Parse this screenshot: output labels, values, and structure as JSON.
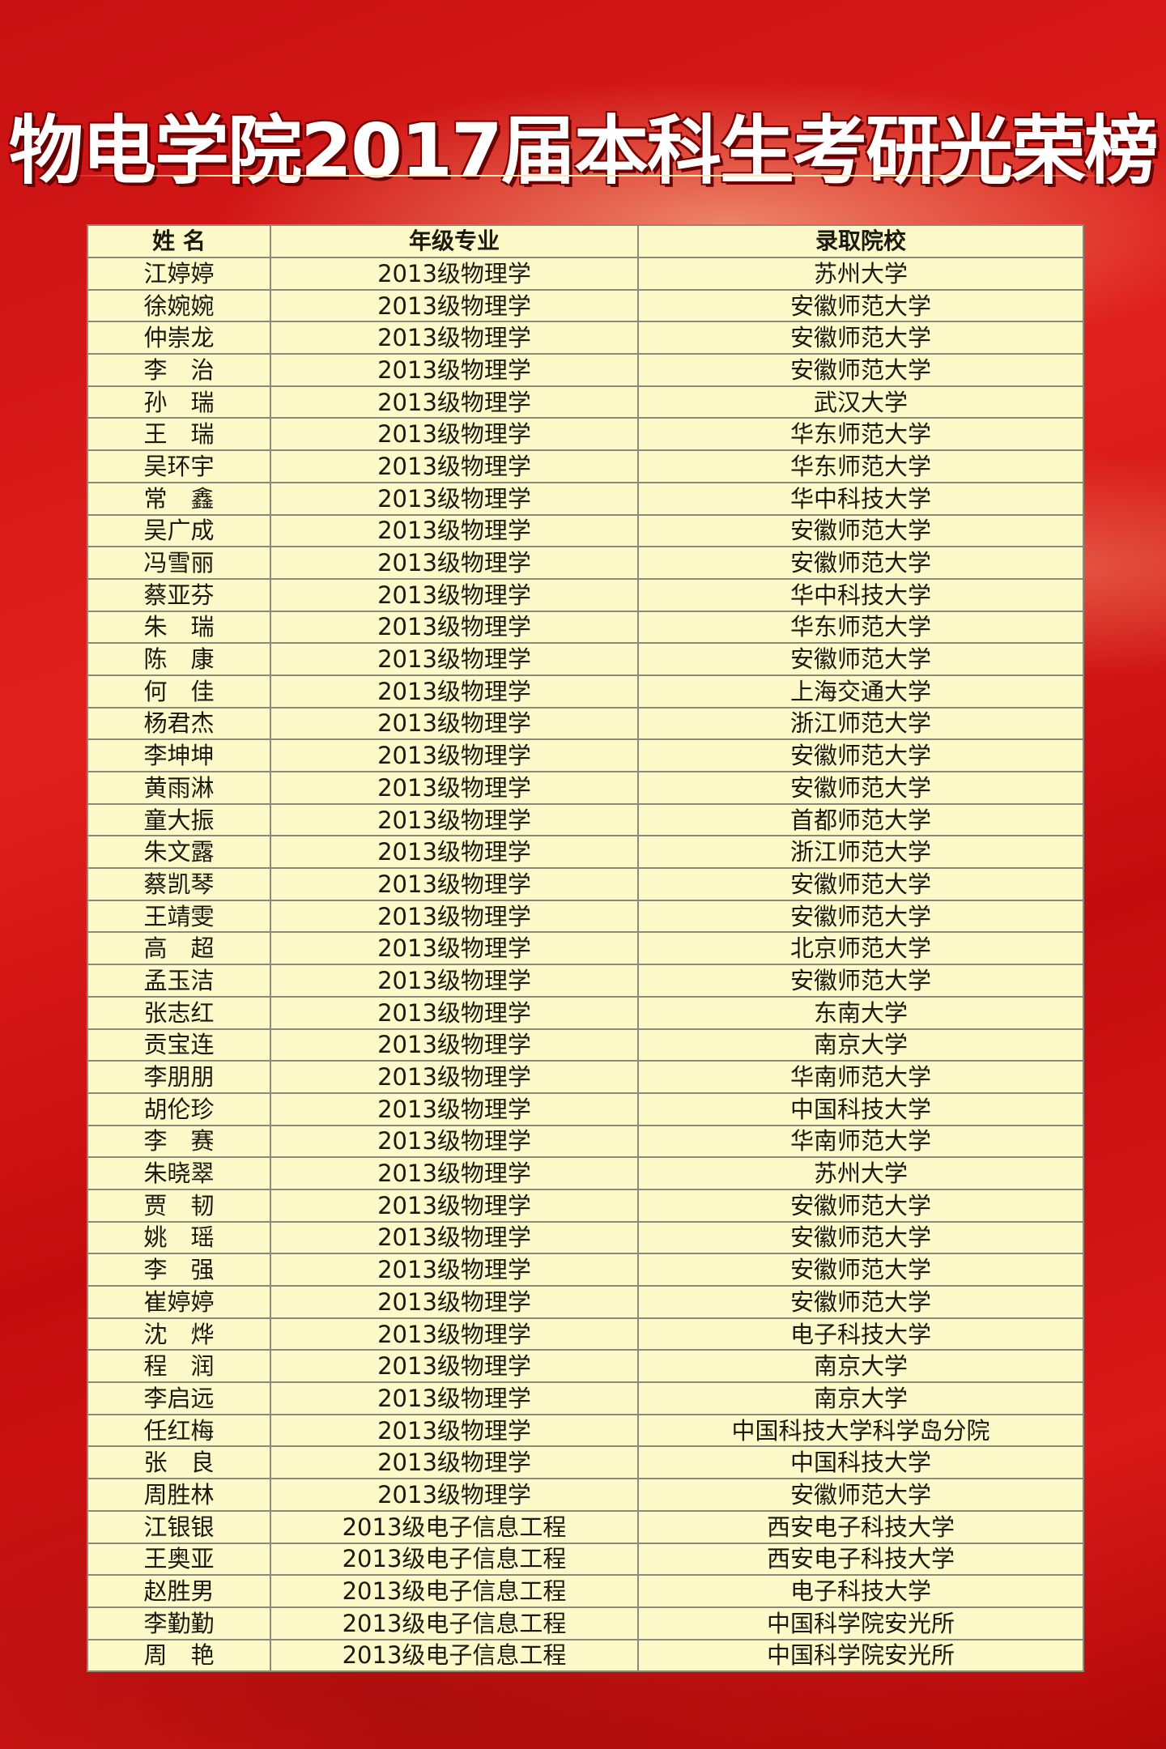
{
  "title": "物电学院2017届本科生考研光荣榜",
  "colors": {
    "background": "#d81a18",
    "table_bg": "#fdf9c8",
    "title_text": "#ffffff"
  },
  "table": {
    "headers": [
      "姓 名",
      "年级专业",
      "录取院校"
    ],
    "rows": [
      [
        "江婷婷",
        "2013级物理学",
        "苏州大学"
      ],
      [
        "徐婉婉",
        "2013级物理学",
        "安徽师范大学"
      ],
      [
        "仲崇龙",
        "2013级物理学",
        "安徽师范大学"
      ],
      [
        "李　治",
        "2013级物理学",
        "安徽师范大学"
      ],
      [
        "孙　瑞",
        "2013级物理学",
        "武汉大学"
      ],
      [
        "王　瑞",
        "2013级物理学",
        "华东师范大学"
      ],
      [
        "吴环宇",
        "2013级物理学",
        "华东师范大学"
      ],
      [
        "常　鑫",
        "2013级物理学",
        "华中科技大学"
      ],
      [
        "吴广成",
        "2013级物理学",
        "安徽师范大学"
      ],
      [
        "冯雪丽",
        "2013级物理学",
        "安徽师范大学"
      ],
      [
        "蔡亚芬",
        "2013级物理学",
        "华中科技大学"
      ],
      [
        "朱　瑞",
        "2013级物理学",
        "华东师范大学"
      ],
      [
        "陈　康",
        "2013级物理学",
        "安徽师范大学"
      ],
      [
        "何　佳",
        "2013级物理学",
        "上海交通大学"
      ],
      [
        "杨君杰",
        "2013级物理学",
        "浙江师范大学"
      ],
      [
        "李坤坤",
        "2013级物理学",
        "安徽师范大学"
      ],
      [
        "黄雨淋",
        "2013级物理学",
        "安徽师范大学"
      ],
      [
        "童大振",
        "2013级物理学",
        "首都师范大学"
      ],
      [
        "朱文露",
        "2013级物理学",
        "浙江师范大学"
      ],
      [
        "蔡凯琴",
        "2013级物理学",
        "安徽师范大学"
      ],
      [
        "王靖雯",
        "2013级物理学",
        "安徽师范大学"
      ],
      [
        "高　超",
        "2013级物理学",
        "北京师范大学"
      ],
      [
        "孟玉洁",
        "2013级物理学",
        "安徽师范大学"
      ],
      [
        "张志红",
        "2013级物理学",
        "东南大学"
      ],
      [
        "贡宝连",
        "2013级物理学",
        "南京大学"
      ],
      [
        "李朋朋",
        "2013级物理学",
        "华南师范大学"
      ],
      [
        "胡伦珍",
        "2013级物理学",
        "中国科技大学"
      ],
      [
        "李　赛",
        "2013级物理学",
        "华南师范大学"
      ],
      [
        "朱晓翠",
        "2013级物理学",
        "苏州大学"
      ],
      [
        "贾　韧",
        "2013级物理学",
        "安徽师范大学"
      ],
      [
        "姚　瑶",
        "2013级物理学",
        "安徽师范大学"
      ],
      [
        "李　强",
        "2013级物理学",
        "安徽师范大学"
      ],
      [
        "崔婷婷",
        "2013级物理学",
        "安徽师范大学"
      ],
      [
        "沈　烨",
        "2013级物理学",
        "电子科技大学"
      ],
      [
        "程　润",
        "2013级物理学",
        "南京大学"
      ],
      [
        "李启远",
        "2013级物理学",
        "南京大学"
      ],
      [
        "任红梅",
        "2013级物理学",
        "中国科技大学科学岛分院"
      ],
      [
        "张　良",
        "2013级物理学",
        "中国科技大学"
      ],
      [
        "周胜林",
        "2013级物理学",
        "安徽师范大学"
      ],
      [
        "江银银",
        "2013级电子信息工程",
        "西安电子科技大学"
      ],
      [
        "王奥亚",
        "2013级电子信息工程",
        "西安电子科技大学"
      ],
      [
        "赵胜男",
        "2013级电子信息工程",
        "电子科技大学"
      ],
      [
        "李勤勤",
        "2013级电子信息工程",
        "中国科学院安光所"
      ],
      [
        "周　艳",
        "2013级电子信息工程",
        "中国科学院安光所"
      ]
    ]
  }
}
